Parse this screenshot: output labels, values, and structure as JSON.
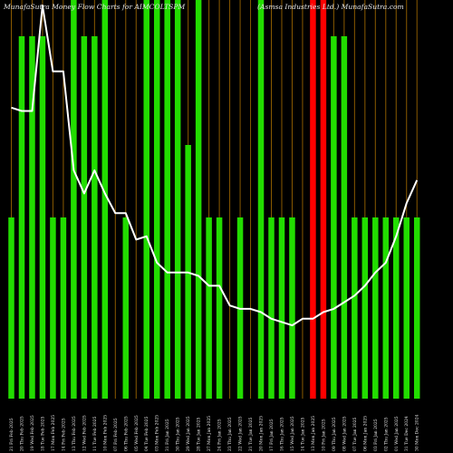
{
  "chart_data": {
    "type": "bar",
    "title_left": "MunafaSutra  Money Flow  Charts for AIMCOLTSPM",
    "title_right": "(Asmsa  Industries  Ltd.)  MunafaSutra.com",
    "categories": [
      "21 Fri Feb 2025",
      "20 Thu Feb 2025",
      "19 Wed Feb 2025",
      "18 Tue Feb 2025",
      "17 Mon Feb 2025",
      "14 Fri Feb 2025",
      "13 Thu Feb 2025",
      "12 Wed Feb 2025",
      "11 Tue Feb 2025",
      "10 Mon Feb 2025",
      "07 Fri Feb 2025",
      "06 Thu Feb 2025",
      "05 Wed Feb 2025",
      "04 Tue Feb 2025",
      "03 Mon Feb 2025",
      "31 Fri Jan 2025",
      "30 Thu Jan 2025",
      "29 Wed Jan 2025",
      "28 Tue Jan 2025",
      "27 Mon Jan 2025",
      "24 Fri Jan 2025",
      "23 Thu Jan 2025",
      "22 Wed Jan 2025",
      "21 Tue Jan 2025",
      "20 Mon Jan 2025",
      "17 Fri Jan 2025",
      "16 Thu Jan 2025",
      "15 Wed Jan 2025",
      "14 Tue Jan 2025",
      "13 Mon Jan 2025",
      "10 Fri Jan 2025",
      "09 Thu Jan 2025",
      "08 Wed Jan 2025",
      "07 Tue Jan 2025",
      "06 Mon Jan 2025",
      "03 Fri Jan 2025",
      "02 Thu Jan 2025",
      "01 Wed Jan 2025",
      "31 Tue Dec 2024",
      "30 Mon Dec 2024"
    ],
    "money_flow_bars": [
      {
        "value": 1,
        "color": "#22dd00"
      },
      {
        "value": 2,
        "color": "#22dd00"
      },
      {
        "value": 2,
        "color": "#22dd00"
      },
      {
        "value": 2,
        "color": "#22dd00"
      },
      {
        "value": 1,
        "color": "#22dd00"
      },
      {
        "value": 1,
        "color": "#22dd00"
      },
      {
        "value": 2.2,
        "color": "#22dd00"
      },
      {
        "value": 2,
        "color": "#22dd00"
      },
      {
        "value": 2,
        "color": "#22dd00"
      },
      {
        "value": 2.2,
        "color": "#22dd00"
      },
      {
        "value": 0,
        "color": "#22dd00"
      },
      {
        "value": 1,
        "color": "#22dd00"
      },
      {
        "value": 0,
        "color": "#22dd00"
      },
      {
        "value": 2.2,
        "color": "#22dd00"
      },
      {
        "value": 2.2,
        "color": "#22dd00"
      },
      {
        "value": 2.2,
        "color": "#22dd00"
      },
      {
        "value": 2.2,
        "color": "#22dd00"
      },
      {
        "value": 1.4,
        "color": "#22dd00"
      },
      {
        "value": 2.2,
        "color": "#22dd00"
      },
      {
        "value": 1,
        "color": "#22dd00"
      },
      {
        "value": 1,
        "color": "#22dd00"
      },
      {
        "value": 0,
        "color": "#22dd00"
      },
      {
        "value": 1,
        "color": "#22dd00"
      },
      {
        "value": 0,
        "color": "#22dd00"
      },
      {
        "value": 2.2,
        "color": "#22dd00"
      },
      {
        "value": 1,
        "color": "#22dd00"
      },
      {
        "value": 1,
        "color": "#22dd00"
      },
      {
        "value": 1,
        "color": "#22dd00"
      },
      {
        "value": 0,
        "color": "#22dd00"
      },
      {
        "value": 2.2,
        "color": "#ff0000"
      },
      {
        "value": 2.2,
        "color": "#ff0000"
      },
      {
        "value": 2,
        "color": "#22dd00"
      },
      {
        "value": 2,
        "color": "#22dd00"
      },
      {
        "value": 1,
        "color": "#22dd00"
      },
      {
        "value": 1,
        "color": "#22dd00"
      },
      {
        "value": 1,
        "color": "#22dd00"
      },
      {
        "value": 1,
        "color": "#22dd00"
      },
      {
        "value": 1,
        "color": "#22dd00"
      },
      {
        "value": 1,
        "color": "#22dd00"
      },
      {
        "value": 1,
        "color": "#22dd00"
      }
    ],
    "price_line": [
      69,
      68,
      68,
      100,
      80,
      80,
      50,
      43,
      50,
      43,
      37,
      37,
      29,
      30,
      22,
      19,
      19,
      19,
      18,
      15,
      15,
      9,
      8,
      8,
      7,
      5,
      4,
      3,
      5,
      5,
      7,
      8,
      10,
      12,
      15,
      19,
      22,
      30,
      40,
      47
    ],
    "line_color": "#ffffff",
    "grid_color": "#8a5a00",
    "background": "#000000",
    "axis": "none"
  }
}
